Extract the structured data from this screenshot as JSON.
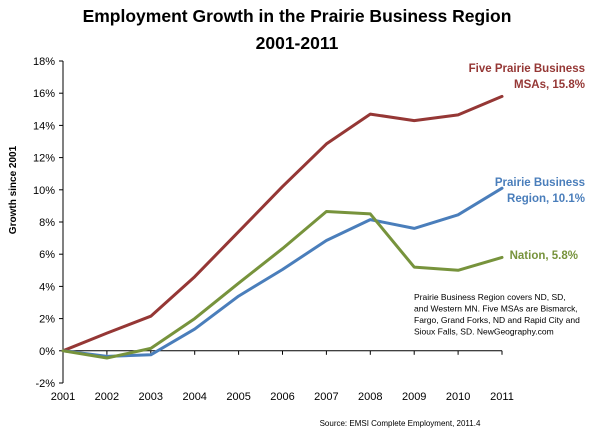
{
  "chart_data": {
    "type": "line",
    "title": "Employment Growth in the Prairie Business Region",
    "subtitle": "2001-2011",
    "ylabel": "Growth since 2001",
    "ylim": [
      -2,
      18
    ],
    "ytick_step": 2,
    "y_tick_labels": [
      "-2%",
      "0%",
      "2%",
      "4%",
      "6%",
      "8%",
      "10%",
      "12%",
      "14%",
      "16%",
      "18%"
    ],
    "x": [
      "2001",
      "2002",
      "2003",
      "2004",
      "2005",
      "2006",
      "2007",
      "2008",
      "2009",
      "2010",
      "2011"
    ],
    "series": [
      {
        "name": "Five Prairie Business MSAs, 15.8%",
        "label_lines": [
          "Five Prairie Business",
          "MSAs, 15.8%"
        ],
        "color": "#953735",
        "values": [
          0,
          1.1,
          2.15,
          4.6,
          7.4,
          10.2,
          12.85,
          14.7,
          14.3,
          14.65,
          15.8
        ]
      },
      {
        "name": "Prairie Business Region, 10.1%",
        "label_lines": [
          "Prairie Business",
          "Region, 10.1%"
        ],
        "color": "#4a7ebb",
        "values": [
          0,
          -0.35,
          -0.25,
          1.35,
          3.4,
          5.05,
          6.85,
          8.15,
          7.6,
          8.45,
          10.1
        ]
      },
      {
        "name": "Nation, 5.8%",
        "label_lines": [
          "Nation, 5.8%"
        ],
        "color": "#77933c",
        "values": [
          0,
          -0.45,
          0.15,
          2.0,
          4.2,
          6.35,
          8.65,
          8.5,
          5.2,
          5.0,
          5.8
        ]
      }
    ],
    "grid": false,
    "legend": "inline labels at right",
    "note_lines": [
      "Prairie Business Region covers ND, SD,",
      "and Western MN.  Five MSAs are Bismarck,",
      "Fargo, Grand Forks, ND and Rapid City and",
      "Sioux Falls, SD.  NewGeography.com"
    ],
    "source": "Source: EMSI Complete Employment, 2011.4"
  }
}
